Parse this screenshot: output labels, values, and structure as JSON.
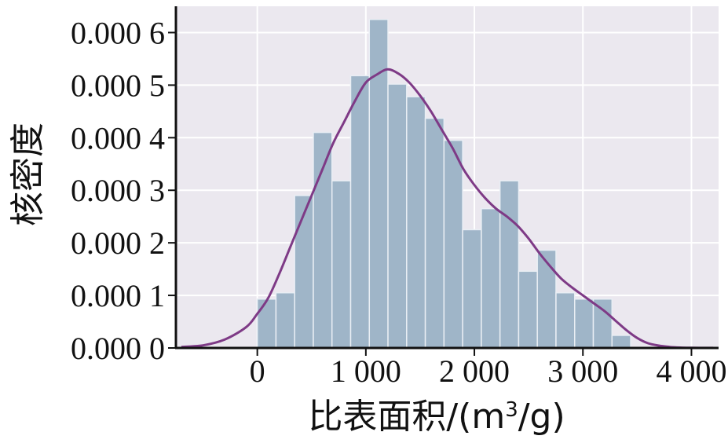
{
  "chart_data": {
    "type": "bar",
    "title": "",
    "xlabel": "比表面积/(m³/g)",
    "xlabel_prefix": "比表面积/(m",
    "xlabel_sup": "3",
    "xlabel_suffix": "/g)",
    "ylabel": "核密度",
    "xlim": [
      -750,
      4250
    ],
    "ylim": [
      0,
      0.00065
    ],
    "grid": true,
    "colors": {
      "background": "#ebe8ef",
      "grid": "#ffffff",
      "bars": "#9fb5c8",
      "bar_edge": "#e9eef4",
      "kde": "#7e3a86",
      "axis": "#111111"
    },
    "x_ticks": [
      {
        "value": 0,
        "label": "0"
      },
      {
        "value": 1000,
        "label": "1 000"
      },
      {
        "value": 2000,
        "label": "2 000"
      },
      {
        "value": 3000,
        "label": "3 000"
      },
      {
        "value": 4000,
        "label": "4 000"
      }
    ],
    "y_ticks": [
      {
        "value": 0.0,
        "label": "0.000 0"
      },
      {
        "value": 0.0001,
        "label": "0.000 1"
      },
      {
        "value": 0.0002,
        "label": "0.000 2"
      },
      {
        "value": 0.0003,
        "label": "0.000 3"
      },
      {
        "value": 0.0004,
        "label": "0.000 4"
      },
      {
        "value": 0.0005,
        "label": "0.000 5"
      },
      {
        "value": 0.0006,
        "label": "0.000 6"
      }
    ],
    "histogram": {
      "bin_width": 172,
      "bins": [
        {
          "x0": 0,
          "density": 9.3e-05
        },
        {
          "x0": 172,
          "density": 0.000105
        },
        {
          "x0": 344,
          "density": 0.00029
        },
        {
          "x0": 516,
          "density": 0.00041
        },
        {
          "x0": 688,
          "density": 0.000318
        },
        {
          "x0": 860,
          "density": 0.000518
        },
        {
          "x0": 1032,
          "density": 0.000625
        },
        {
          "x0": 1204,
          "density": 0.000502
        },
        {
          "x0": 1376,
          "density": 0.000478
        },
        {
          "x0": 1548,
          "density": 0.000437
        },
        {
          "x0": 1720,
          "density": 0.000395
        },
        {
          "x0": 1892,
          "density": 0.000225
        },
        {
          "x0": 2064,
          "density": 0.000265
        },
        {
          "x0": 2236,
          "density": 0.000318
        },
        {
          "x0": 2408,
          "density": 0.000146
        },
        {
          "x0": 2580,
          "density": 0.000186
        },
        {
          "x0": 2752,
          "density": 0.000105
        },
        {
          "x0": 2924,
          "density": 9.3e-05
        },
        {
          "x0": 3096,
          "density": 9.3e-05
        },
        {
          "x0": 3268,
          "density": 2.4e-05
        }
      ]
    },
    "kde": {
      "x": [
        -700,
        -500,
        -300,
        -100,
        0,
        100,
        200,
        300,
        400,
        500,
        600,
        700,
        800,
        900,
        1000,
        1100,
        1200,
        1300,
        1400,
        1500,
        1600,
        1700,
        1800,
        1900,
        2000,
        2100,
        2200,
        2300,
        2400,
        2500,
        2600,
        2700,
        2800,
        2900,
        3000,
        3100,
        3200,
        3300,
        3400,
        3500,
        3600,
        3700,
        3800,
        3900,
        4000,
        4200
      ],
      "y": [
        2e-06,
        5e-06,
        1.6e-05,
        4e-05,
        6.5e-05,
        9.5e-05,
        0.00014,
        0.00019,
        0.00024,
        0.00029,
        0.00034,
        0.00039,
        0.00043,
        0.00047,
        0.000505,
        0.00052,
        0.00053,
        0.000522,
        0.000505,
        0.00048,
        0.00045,
        0.000415,
        0.00038,
        0.00034,
        0.00031,
        0.000285,
        0.000265,
        0.00025,
        0.000232,
        0.000208,
        0.00018,
        0.000155,
        0.000132,
        0.000115,
        0.0001,
        8.5e-05,
        7e-05,
        5.2e-05,
        3.4e-05,
        1.9e-05,
        9e-06,
        4.5e-06,
        2e-06,
        8e-07,
        3e-07,
        1e-07
      ]
    }
  }
}
